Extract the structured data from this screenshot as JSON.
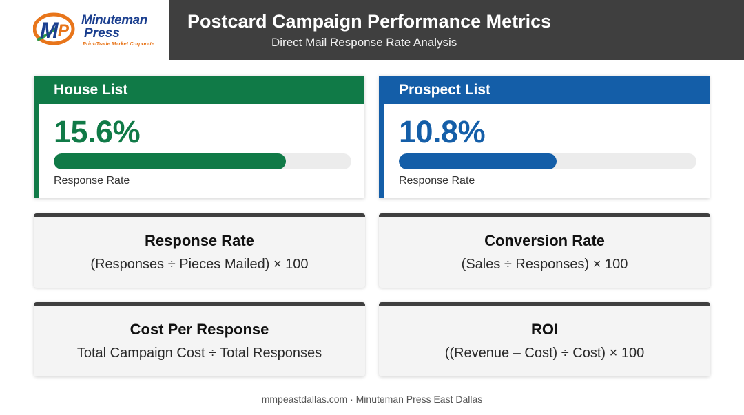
{
  "logo": {
    "name_line1": "Minuteman",
    "name_line2": "Press",
    "tagline": "Print-Trade Market Corporate",
    "colors": {
      "orange": "#e8751a",
      "blue": "#1b3f8f",
      "green": "#2e9b4a"
    }
  },
  "header": {
    "title": "Postcard Campaign Performance Metrics",
    "subtitle": "Direct Mail Response Rate Analysis"
  },
  "metrics": [
    {
      "name": "House List",
      "value_text": "15.6%",
      "progress_percent": 78,
      "label": "Response Rate",
      "color": "#107a47"
    },
    {
      "name": "Prospect List",
      "value_text": "10.8%",
      "progress_percent": 53,
      "label": "Response Rate",
      "color": "#145ea8"
    }
  ],
  "formulas": [
    {
      "title": "Response Rate",
      "formula": "(Responses ÷ Pieces Mailed) × 100"
    },
    {
      "title": "Conversion Rate",
      "formula": "(Sales ÷ Responses) × 100"
    },
    {
      "title": "Cost Per Response",
      "formula": "Total Campaign Cost ÷ Total Responses"
    },
    {
      "title": "ROI",
      "formula": "((Revenue – Cost) ÷ Cost) × 100"
    }
  ],
  "footer": {
    "text": "mmpeastdallas.com · Minuteman Press East Dallas"
  }
}
